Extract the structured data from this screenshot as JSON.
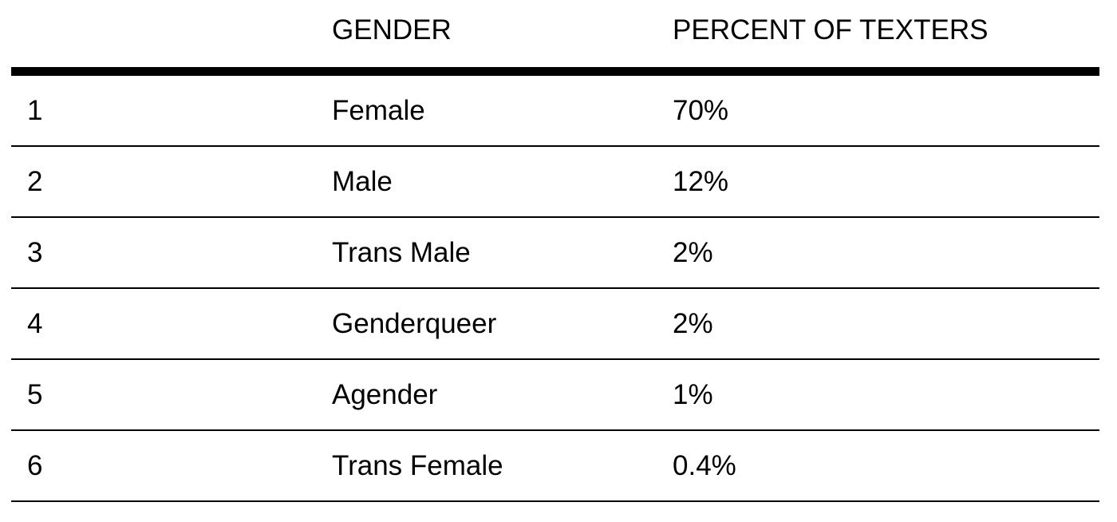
{
  "chart_data": {
    "type": "table",
    "columns": [
      "",
      "GENDER",
      "PERCENT OF TEXTERS"
    ],
    "rows": [
      {
        "rank": "1",
        "gender": "Female",
        "percent": "70%"
      },
      {
        "rank": "2",
        "gender": "Male",
        "percent": "12%"
      },
      {
        "rank": "3",
        "gender": "Trans Male",
        "percent": "2%"
      },
      {
        "rank": "4",
        "gender": "Genderqueer",
        "percent": "2%"
      },
      {
        "rank": "5",
        "gender": "Agender",
        "percent": "1%"
      },
      {
        "rank": "6",
        "gender": "Trans Female",
        "percent": "0.4%"
      }
    ]
  }
}
